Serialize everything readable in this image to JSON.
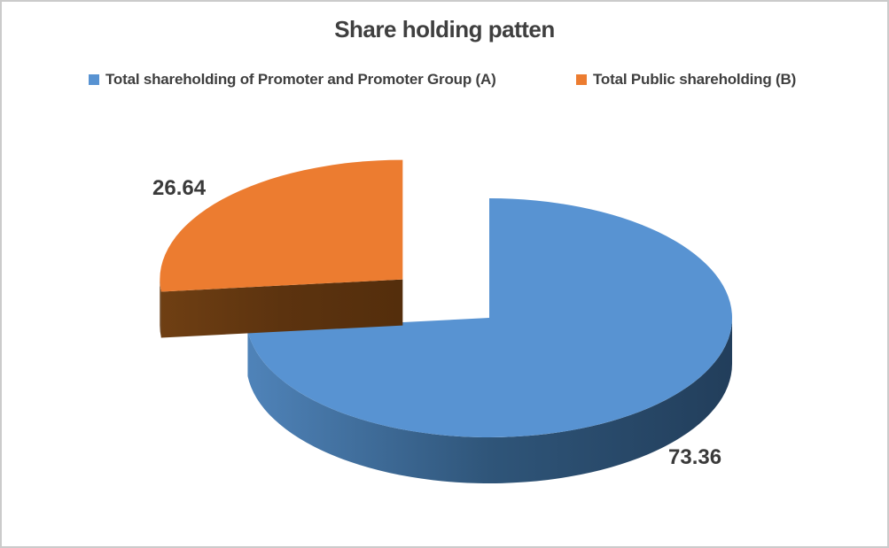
{
  "chart_data": {
    "type": "pie",
    "is_3d": true,
    "title": "Share holding patten",
    "legend_position": "top",
    "grid": false,
    "background": "#FFFFFF",
    "border_color": "#CBCBCB",
    "text_color": "#3F3F3F",
    "slices": [
      {
        "label": "Total shareholding of Promoter and Promoter Group (A)",
        "value": 73.36,
        "color": "#5893D2",
        "side_gradient": [
          "#4F83B9",
          "#2F5579",
          "#223E5B"
        ],
        "exploded": false
      },
      {
        "label": "Total Public shareholding (B)",
        "value": 26.64,
        "color": "#EC7C30",
        "side_gradient": [
          "#6F3F13",
          "#5C330F",
          "#542E0C"
        ],
        "exploded": true
      }
    ]
  }
}
